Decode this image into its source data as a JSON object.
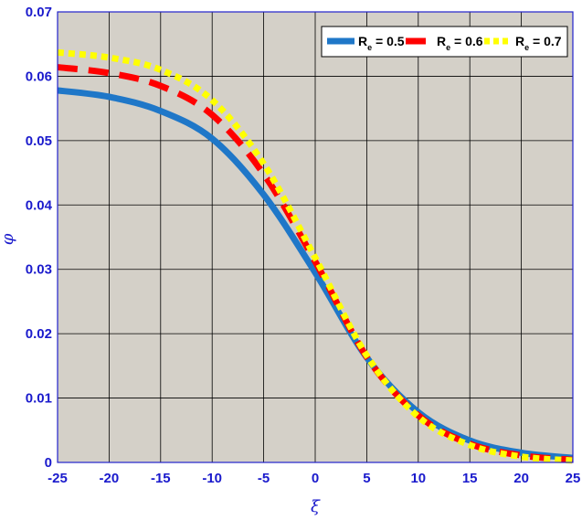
{
  "chart_data": {
    "type": "line",
    "title": "",
    "xlabel": "ξ",
    "ylabel": "φ",
    "xlim": [
      -25,
      25
    ],
    "ylim": [
      0,
      0.07
    ],
    "x_ticks": [
      -25,
      -20,
      -15,
      -10,
      -5,
      0,
      5,
      10,
      15,
      20,
      25
    ],
    "y_ticks": [
      0,
      0.01,
      0.02,
      0.03,
      0.04,
      0.05,
      0.06,
      0.07
    ],
    "grid": true,
    "legend_position": "top-right",
    "colors": {
      "background": "#d4d0c8",
      "grid": "#000000",
      "frame": "#2222cc",
      "tick_text": "#1a1acc"
    },
    "x": [
      -25,
      -20,
      -15,
      -10,
      -5,
      0,
      5,
      10,
      15,
      20,
      25
    ],
    "series": [
      {
        "name": "R_e = 0.5",
        "legend_main": "R",
        "legend_sub": "e",
        "legend_tail": " = 0.5",
        "color": "#1f77c8",
        "style": "solid",
        "values": [
          0.0578,
          0.0568,
          0.0546,
          0.0503,
          0.0416,
          0.0295,
          0.0163,
          0.0078,
          0.0034,
          0.0015,
          0.0007
        ]
      },
      {
        "name": "R_e = 0.6",
        "legend_main": "R",
        "legend_sub": "e",
        "legend_tail": " = 0.6",
        "color": "#ff0000",
        "style": "dashed",
        "values": [
          0.0614,
          0.0605,
          0.0585,
          0.054,
          0.0448,
          0.0312,
          0.0164,
          0.0073,
          0.0029,
          0.0011,
          0.0004
        ]
      },
      {
        "name": "R_e = 0.7",
        "legend_main": "R",
        "legend_sub": "e",
        "legend_tail": " = 0.7",
        "color": "#ffff00",
        "style": "dotted",
        "values": [
          0.0637,
          0.0629,
          0.061,
          0.0563,
          0.0464,
          0.0318,
          0.0166,
          0.0071,
          0.0027,
          0.0009,
          0.0003
        ]
      }
    ]
  }
}
